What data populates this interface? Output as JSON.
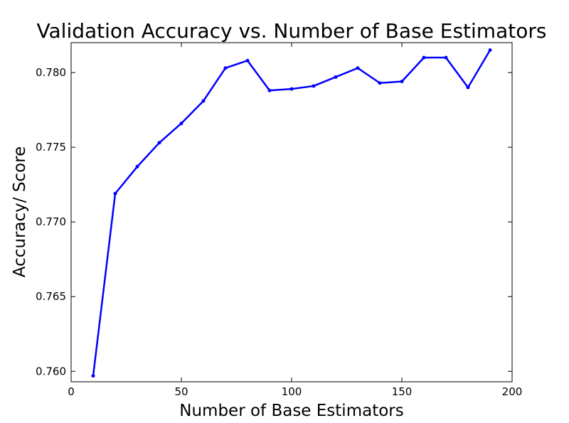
{
  "chart_data": {
    "type": "line",
    "title": "Validation Accuracy vs. Number of Base Estimators",
    "xlabel": "Number of Base Estimators",
    "ylabel": "Accuracy/ Score",
    "xlim": [
      0,
      200
    ],
    "ylim": [
      0.7593,
      0.782
    ],
    "xticks": [
      0,
      50,
      100,
      150,
      200
    ],
    "xtick_labels": [
      "0",
      "50",
      "100",
      "150",
      "200"
    ],
    "yticks": [
      0.76,
      0.765,
      0.77,
      0.775,
      0.78
    ],
    "ytick_labels": [
      "0.760",
      "0.765",
      "0.770",
      "0.775",
      "0.780"
    ],
    "grid": false,
    "series": [
      {
        "color": "#0000ff",
        "x": [
          10,
          20,
          30,
          40,
          50,
          60,
          70,
          80,
          90,
          100,
          110,
          120,
          130,
          140,
          150,
          160,
          170,
          180,
          190
        ],
        "y": [
          0.7597,
          0.7719,
          0.7737,
          0.7753,
          0.7766,
          0.7781,
          0.7803,
          0.7808,
          0.7788,
          0.7789,
          0.7791,
          0.7797,
          0.7803,
          0.7793,
          0.7794,
          0.781,
          0.781,
          0.779,
          0.7815
        ]
      }
    ]
  }
}
